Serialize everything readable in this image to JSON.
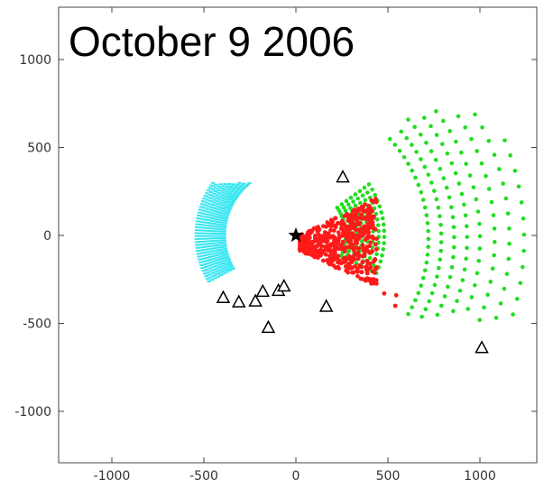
{
  "chart_data": {
    "type": "scatter",
    "title": "October 9 2006",
    "xlabel": "",
    "ylabel": "",
    "xlim": [
      -1300,
      1300
    ],
    "ylim": [
      -1300,
      1300
    ],
    "xticks": [
      -1000,
      -500,
      0,
      500,
      1000
    ],
    "yticks": [
      1000,
      500,
      0,
      -500,
      -1000
    ],
    "xtick_labels": [
      "-1000",
      "-500",
      "0",
      "500",
      "1000"
    ],
    "ytick_labels": [
      "1000",
      "500",
      "0",
      "-500",
      "-1000"
    ],
    "grid": false,
    "colors": {
      "cyan": "#33e5f0",
      "red": "#ff1a1a",
      "green": "#22dd22",
      "marker_edge": "#000000",
      "axes": "#444444"
    },
    "source": {
      "x": 0,
      "y": 0,
      "marker": "star"
    },
    "stations": [
      {
        "x": -395,
        "y": -355
      },
      {
        "x": -310,
        "y": -380
      },
      {
        "x": -220,
        "y": -375
      },
      {
        "x": -180,
        "y": -320
      },
      {
        "x": -95,
        "y": -315
      },
      {
        "x": -65,
        "y": -290
      },
      {
        "x": -150,
        "y": -525
      },
      {
        "x": 165,
        "y": -405
      },
      {
        "x": 255,
        "y": 330
      },
      {
        "x": 1010,
        "y": -640
      }
    ],
    "series": [
      {
        "color": "cyan",
        "shape": "arc",
        "center": [
          0,
          0
        ],
        "radius_range": [
          390,
          540
        ],
        "angle_range_deg": [
          -30,
          55
        ],
        "note": "approx"
      },
      {
        "color": "red",
        "shape": "wedge",
        "apex": [
          0,
          0
        ],
        "extent": [
          [
            0,
            400
          ],
          [
            -360,
            280
          ]
        ]
      },
      {
        "color": "green",
        "shape": "arcs",
        "radius_range": [
          250,
          1300
        ],
        "angle_range_deg": [
          -30,
          40
        ]
      }
    ]
  }
}
